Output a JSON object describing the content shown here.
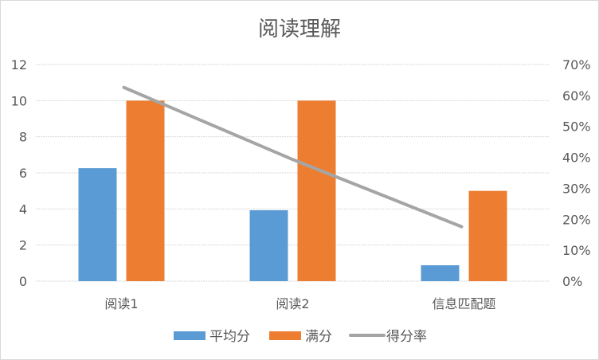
{
  "chart_data": {
    "type": "bar",
    "title": "阅读理解",
    "categories": [
      "阅读1",
      "阅读2",
      "信息匹配题"
    ],
    "series": [
      {
        "name": "平均分",
        "type": "bar",
        "axis": "left",
        "color": "#5B9BD5",
        "values": [
          6.26,
          3.93,
          0.88
        ]
      },
      {
        "name": "满分",
        "type": "bar",
        "axis": "left",
        "color": "#ED7D31",
        "values": [
          10,
          10,
          5
        ]
      },
      {
        "name": "得分率",
        "type": "line",
        "axis": "right",
        "color": "#A5A5A5",
        "values": [
          0.626,
          0.393,
          0.176
        ]
      }
    ],
    "left_axis": {
      "ticks": [
        "0",
        "2",
        "4",
        "6",
        "8",
        "10",
        "12"
      ],
      "ylim": [
        0,
        12
      ]
    },
    "right_axis": {
      "ticks": [
        "0%",
        "10%",
        "20%",
        "30%",
        "40%",
        "50%",
        "60%",
        "70%"
      ],
      "ylim": [
        0,
        0.7
      ]
    },
    "xlabel": "",
    "ylabel": "",
    "grid": true,
    "legend_position": "bottom"
  }
}
